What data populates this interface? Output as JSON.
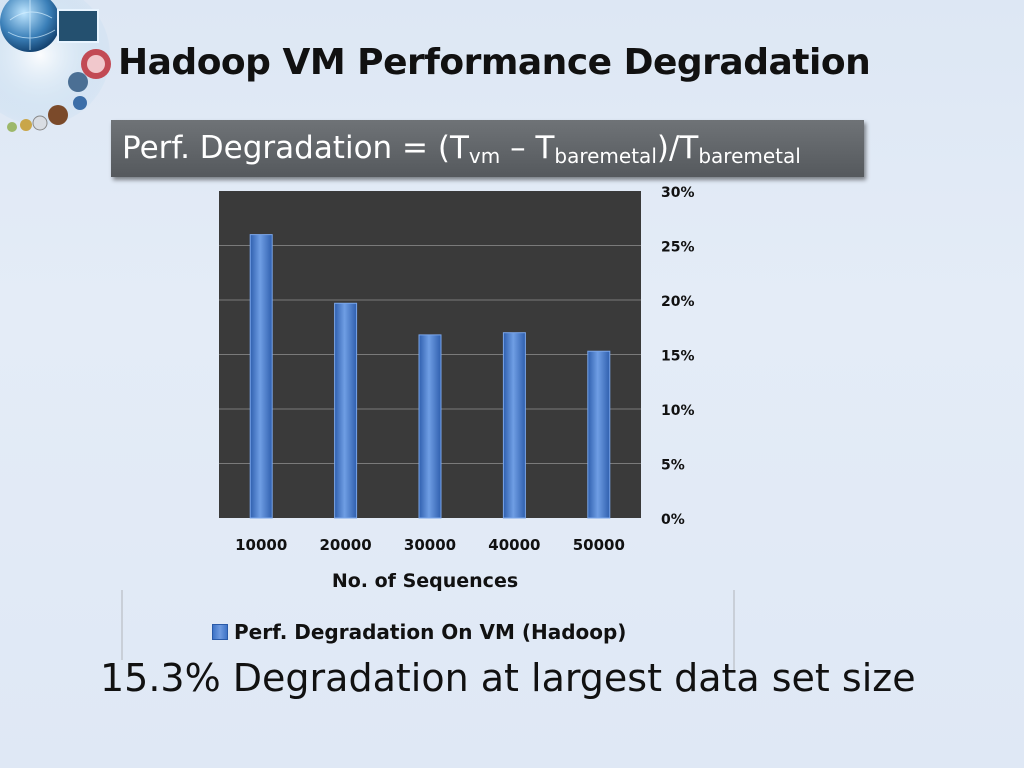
{
  "slide": {
    "title": "Hadoop VM Performance Degradation",
    "caption": "15.3% Degradation at largest data set size",
    "logo_icon": "globe-collage-icon"
  },
  "formula": {
    "lhs": "Perf. Degradation = (T",
    "sub_vm": "vm",
    "minus": " – T",
    "sub_bm1": "baremetal",
    "div": ")/T",
    "sub_bm2": "baremetal"
  },
  "chart_data": {
    "type": "bar",
    "categories": [
      "10000",
      "20000",
      "30000",
      "40000",
      "50000"
    ],
    "series": [
      {
        "name": "Perf. Degradation On VM (Hadoop)",
        "values": [
          0.26,
          0.197,
          0.168,
          0.17,
          0.153
        ]
      }
    ],
    "xlabel": "No. of Sequences",
    "ylabel": "",
    "ylim": [
      0,
      0.3
    ],
    "yticks": [
      "0%",
      "5%",
      "10%",
      "15%",
      "20%",
      "25%",
      "30%"
    ],
    "y_axis_side": "right",
    "grid": true,
    "legend": "bottom",
    "colors": {
      "bar": "#3f74c7",
      "plot_bg": "#3a3a3a",
      "grid": "#7a7a7a"
    }
  }
}
